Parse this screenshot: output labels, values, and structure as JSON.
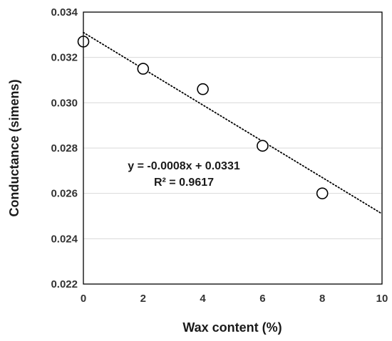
{
  "chart_data": {
    "type": "scatter",
    "title": "",
    "xlabel": "Wax content (%)",
    "ylabel": "Conductance (simens)",
    "xlim": [
      0,
      10
    ],
    "ylim": [
      0.022,
      0.034
    ],
    "x_ticks": [
      0,
      2,
      4,
      6,
      8,
      10
    ],
    "y_ticks": [
      0.022,
      0.024,
      0.026,
      0.028,
      0.03,
      0.032,
      0.034
    ],
    "x_tick_labels": [
      "0",
      "2",
      "4",
      "6",
      "8",
      "10"
    ],
    "y_tick_labels": [
      "0.022",
      "0.024",
      "0.026",
      "0.028",
      "0.030",
      "0.032",
      "0.034"
    ],
    "grid": "horizontal",
    "series": [
      {
        "x": [
          0,
          2,
          4,
          6,
          8
        ],
        "y": [
          0.0327,
          0.0315,
          0.0306,
          0.0281,
          0.026
        ],
        "marker": "open-circle"
      }
    ],
    "trendline": {
      "type": "linear",
      "slope": -0.0008,
      "intercept": 0.0331,
      "style": "dotted",
      "x_range": [
        0,
        10
      ]
    },
    "annotations": {
      "equation": "y = -0.0008x + 0.0331",
      "r_squared": "R² = 0.9617"
    },
    "colors": {
      "marker_stroke": "#000000",
      "trendline": "#000000",
      "grid": "#d9d9d9",
      "text": "#333333"
    }
  }
}
